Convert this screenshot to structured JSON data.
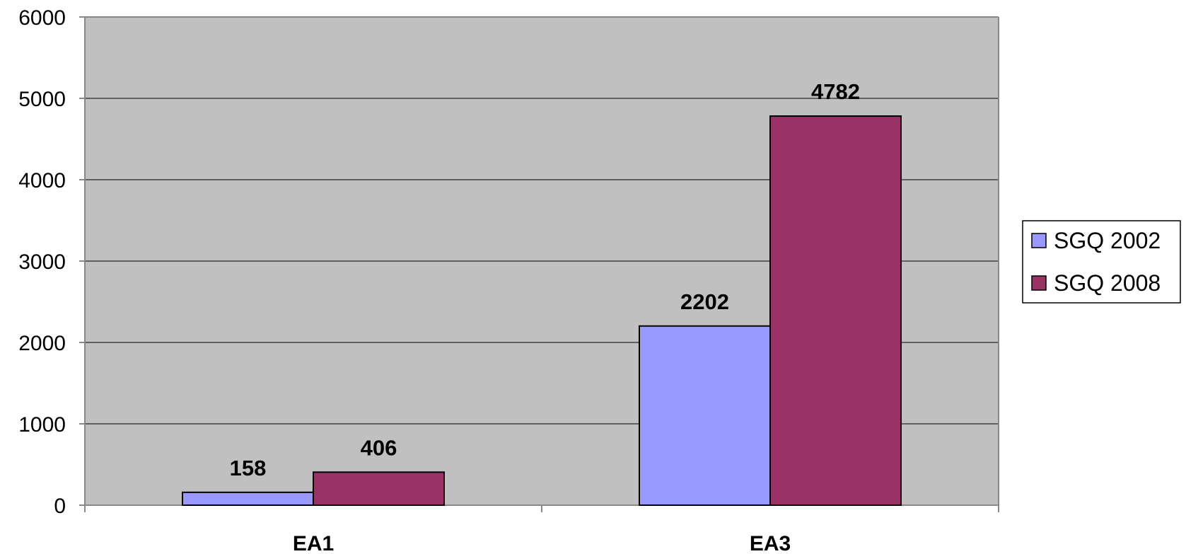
{
  "chart_data": {
    "type": "bar",
    "categories": [
      "EA1",
      "EA3"
    ],
    "series": [
      {
        "name": "SGQ 2002",
        "values": [
          158,
          2202
        ],
        "color": "#9999ff"
      },
      {
        "name": "SGQ 2008",
        "values": [
          406,
          4782
        ],
        "color": "#993366"
      }
    ],
    "data_labels": [
      [
        "158",
        "2202"
      ],
      [
        "406",
        "4782"
      ]
    ],
    "y_ticks": [
      "0",
      "1000",
      "2000",
      "3000",
      "4000",
      "5000",
      "6000"
    ],
    "ylim": [
      0,
      6000
    ],
    "grid": true,
    "legend_position": "right",
    "plot_background": "#c0c0c0",
    "title": "",
    "xlabel": "",
    "ylabel": ""
  }
}
